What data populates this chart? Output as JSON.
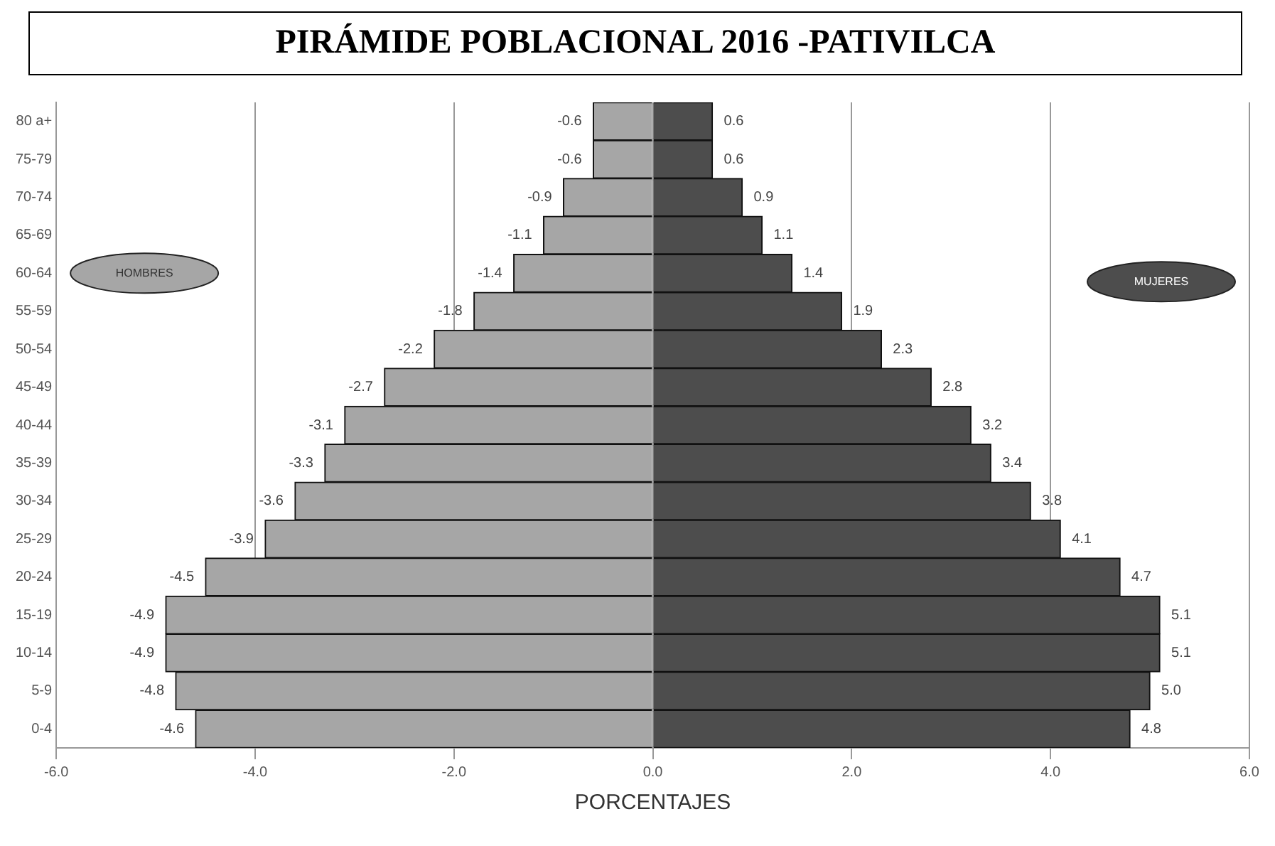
{
  "chart_data": {
    "type": "bar",
    "title": "PIRÁMIDE POBLACIONAL 2016 -PATIVILCA",
    "xlabel": "PORCENTAJES",
    "orientation": "horizontal",
    "stacked": true,
    "categories": [
      "80 a+",
      "75-79",
      "70-74",
      "65-69",
      "60-64",
      "55-59",
      "50-54",
      "45-49",
      "40-44",
      "35-39",
      "30-34",
      "25-29",
      "20-24",
      "15-19",
      "10-14",
      "5-9",
      "0-4"
    ],
    "series": [
      {
        "name": "HOMBRES",
        "color": "#a6a6a6",
        "values": [
          -0.6,
          -0.6,
          -0.9,
          -1.1,
          -1.4,
          -1.8,
          -2.2,
          -2.7,
          -3.1,
          -3.3,
          -3.6,
          -3.9,
          -4.5,
          -4.9,
          -4.9,
          -4.8,
          -4.6
        ],
        "value_labels": [
          "-0.6",
          "-0.6",
          "-0.9",
          "-1.1",
          "-1.4",
          "-1.8",
          "-2.2",
          "-2.7",
          "-3.1",
          "-3.3",
          "-3.6",
          "-3.9",
          "-4.5",
          "-4.9",
          "-4.9",
          "-4.8",
          "-4.6"
        ]
      },
      {
        "name": "MUJERES",
        "color": "#4d4d4d",
        "values": [
          0.6,
          0.6,
          0.9,
          1.1,
          1.4,
          1.9,
          2.3,
          2.8,
          3.2,
          3.4,
          3.8,
          4.1,
          4.7,
          5.1,
          5.1,
          5.0,
          4.8
        ],
        "value_labels": [
          "0.6",
          "0.6",
          "0.9",
          "1.1",
          "1.4",
          "1.9",
          "2.3",
          "2.8",
          "3.2",
          "3.4",
          "3.8",
          "4.1",
          "4.7",
          "5.1",
          "5.1",
          "5.0",
          "4.8"
        ]
      }
    ],
    "xlim": [
      -6,
      6
    ],
    "xticks": [
      {
        "value": -6,
        "label": "-6.0"
      },
      {
        "value": -4,
        "label": "-4.0"
      },
      {
        "value": -2,
        "label": "-2.0"
      },
      {
        "value": 0,
        "label": "0.0"
      },
      {
        "value": 2,
        "label": "2.0"
      },
      {
        "value": 4,
        "label": "4.0"
      },
      {
        "value": 6,
        "label": "6.0"
      }
    ],
    "grid": "x",
    "legend": false
  }
}
